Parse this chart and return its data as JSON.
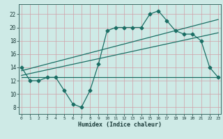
{
  "title": "",
  "xlabel": "Humidex (Indice chaleur)",
  "bg_color": "#ceeae6",
  "grid_color": "#b8d8d4",
  "line_color": "#1a6e64",
  "x_ticks": [
    0,
    1,
    2,
    3,
    4,
    5,
    6,
    7,
    8,
    9,
    10,
    11,
    12,
    13,
    14,
    15,
    16,
    17,
    18,
    19,
    20,
    21,
    22,
    23
  ],
  "y_ticks": [
    8,
    10,
    12,
    14,
    16,
    18,
    20,
    22
  ],
  "ylim": [
    7.0,
    23.5
  ],
  "xlim": [
    -0.3,
    23.3
  ],
  "series1_x": [
    0,
    1,
    2,
    3,
    4,
    5,
    6,
    7,
    8,
    9,
    10,
    11,
    12,
    13,
    14,
    15,
    16,
    17,
    18,
    19,
    20,
    21,
    22,
    23
  ],
  "series1_y": [
    14,
    12,
    12,
    12.5,
    12.5,
    10.5,
    8.5,
    8,
    10.5,
    14.5,
    19.5,
    20,
    20,
    20,
    20,
    22,
    22.5,
    21,
    19.5,
    19,
    19,
    18,
    14,
    12.5
  ],
  "series2_x": [
    0,
    23
  ],
  "series2_y": [
    12.5,
    12.5
  ],
  "series3_x": [
    0,
    23
  ],
  "series3_y": [
    12.8,
    19.2
  ],
  "series4_x": [
    0,
    23
  ],
  "series4_y": [
    13.5,
    21.2
  ]
}
